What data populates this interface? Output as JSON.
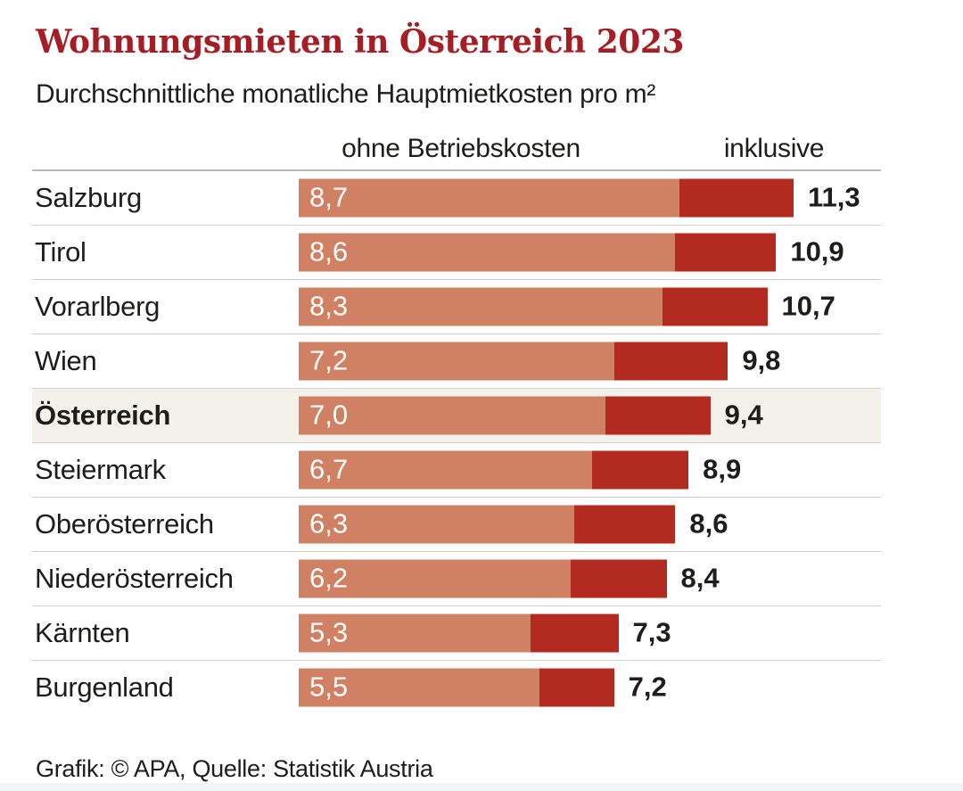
{
  "header": {
    "title": "Wohnungsmieten in Österreich 2023",
    "subtitle": "Durchschnittliche monatliche Hauptmietkosten pro m²"
  },
  "columns": {
    "left": "ohne Betriebskosten",
    "right": "inklusive"
  },
  "chart_data": {
    "type": "bar",
    "orientation": "horizontal",
    "stacked": true,
    "title": "Wohnungsmieten in Österreich 2023",
    "subtitle": "Durchschnittliche monatliche Hauptmietkosten pro m²",
    "categories": [
      "Salzburg",
      "Tirol",
      "Vorarlberg",
      "Wien",
      "Österreich",
      "Steiermark",
      "Oberösterreich",
      "Niederösterreich",
      "Kärnten",
      "Burgenland"
    ],
    "series": [
      {
        "name": "ohne Betriebskosten",
        "values": [
          8.7,
          8.6,
          8.3,
          7.2,
          7.0,
          6.7,
          6.3,
          6.2,
          5.3,
          5.5
        ]
      },
      {
        "name": "inklusive",
        "values": [
          11.3,
          10.9,
          10.7,
          9.8,
          9.4,
          8.9,
          8.6,
          8.4,
          7.3,
          7.2
        ]
      }
    ],
    "highlighted_category": "Österreich",
    "xlim": [
      0,
      11.3
    ],
    "grid": false,
    "legend_position": "top-as-column-headers",
    "decimal_separator": ",",
    "colors": {
      "ohne_betriebskosten": "#d08164",
      "inklusive": "#b32a20",
      "highlight_row_bg": "#f4f1ea",
      "title_red": "#a51e25"
    }
  },
  "footer": {
    "credit": "Grafik: © APA, Quelle: Statistik Austria"
  }
}
